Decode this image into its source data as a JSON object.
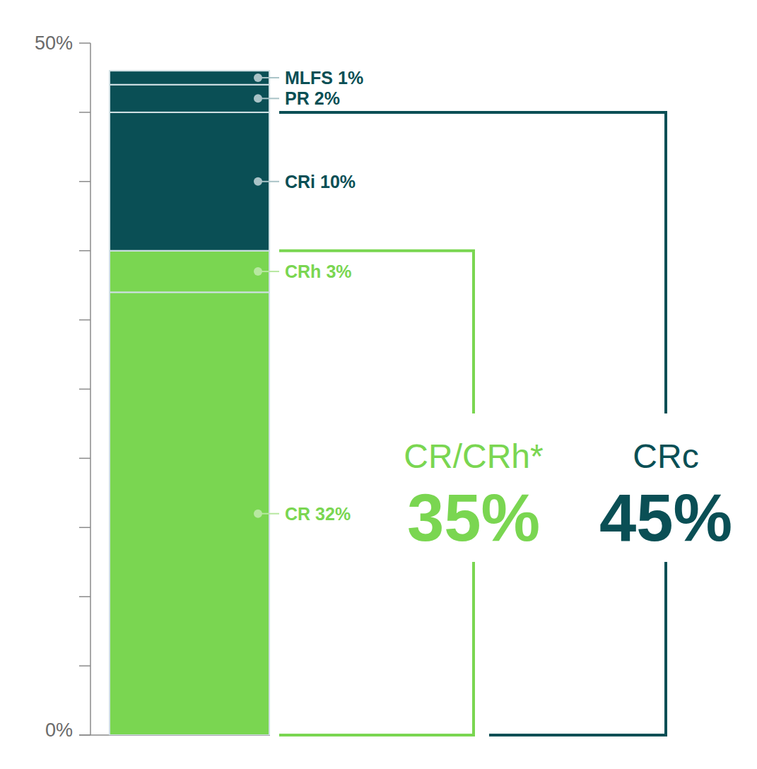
{
  "chart_data": {
    "type": "bar",
    "stacked": true,
    "data_labels": true,
    "categories": [
      "CR",
      "CRh",
      "CRi",
      "PR",
      "MLFS"
    ],
    "values": [
      32,
      3,
      10,
      2,
      1
    ],
    "value_labels": [
      "32%",
      "3%",
      "10%",
      "2%",
      "1%"
    ],
    "colors": [
      "#7ad651",
      "#7ad651",
      "#0a4f55",
      "#0a4f55",
      "#0a4f55"
    ],
    "ylim": [
      0,
      50
    ],
    "yticks": [
      {
        "value": 0,
        "label": "0%"
      },
      {
        "value": 50,
        "label": "50%"
      }
    ],
    "minor_yticks": [
      5,
      10,
      15,
      20,
      25,
      30,
      35,
      40,
      45
    ],
    "groups": [
      {
        "name": "CR/CRh*",
        "value": 35,
        "value_label": "35%",
        "color": "#7ad651"
      },
      {
        "name": "CRc",
        "value": 45,
        "value_label": "45%",
        "color": "#0a4f55"
      }
    ]
  }
}
